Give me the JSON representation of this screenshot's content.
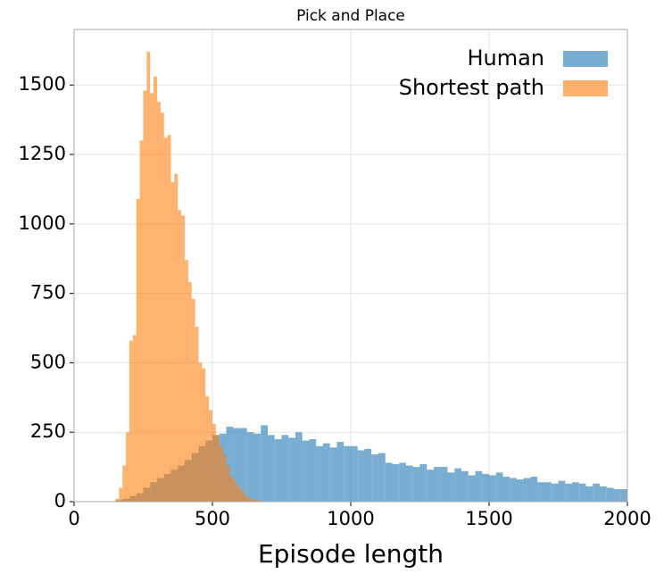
{
  "chart_data": {
    "type": "histogram",
    "title": "Pick and Place",
    "xlabel": "Episode length",
    "xlim": [
      0,
      2000
    ],
    "xticks": [
      0,
      500,
      1000,
      1500,
      2000
    ],
    "ylim": [
      0,
      1700
    ],
    "yticks": [
      0,
      250,
      500,
      750,
      1000,
      1250,
      1500
    ],
    "grid": true,
    "legend": "upper right",
    "series": [
      {
        "name": "Human",
        "color": "#1f77b4",
        "bins": [
          150,
          175,
          200,
          225,
          250,
          275,
          300,
          325,
          350,
          375,
          400,
          425,
          450,
          475,
          500,
          525,
          550,
          575,
          600,
          625,
          650,
          675,
          700,
          725,
          750,
          775,
          800,
          825,
          850,
          875,
          900,
          925,
          950,
          975,
          1000,
          1025,
          1050,
          1075,
          1100,
          1125,
          1150,
          1175,
          1200,
          1225,
          1250,
          1275,
          1300,
          1325,
          1350,
          1375,
          1400,
          1425,
          1450,
          1475,
          1500,
          1525,
          1550,
          1575,
          1600,
          1625,
          1650,
          1675,
          1700,
          1725,
          1750,
          1775,
          1800,
          1825,
          1850,
          1875,
          1900,
          1925,
          1950,
          1975,
          2000
        ],
        "values": [
          5,
          10,
          20,
          30,
          50,
          70,
          85,
          100,
          115,
          130,
          150,
          175,
          200,
          220,
          240,
          245,
          270,
          265,
          265,
          250,
          245,
          275,
          240,
          225,
          240,
          230,
          250,
          220,
          225,
          200,
          210,
          195,
          215,
          200,
          200,
          185,
          190,
          170,
          175,
          140,
          135,
          140,
          130,
          125,
          135,
          115,
          125,
          125,
          105,
          120,
          110,
          95,
          110,
          100,
          95,
          105,
          90,
          85,
          80,
          85,
          90,
          70,
          70,
          65,
          75,
          65,
          70,
          65,
          55,
          65,
          55,
          50,
          45,
          45
        ]
      },
      {
        "name": "Shortest path",
        "color": "#ff7f0e",
        "bins": [
          150,
          162.5,
          175,
          187.5,
          200,
          212.5,
          225,
          237.5,
          250,
          262.5,
          275,
          287.5,
          300,
          312.5,
          325,
          337.5,
          350,
          362.5,
          375,
          387.5,
          400,
          412.5,
          425,
          437.5,
          450,
          462.5,
          475,
          487.5,
          500,
          512.5,
          525,
          537.5,
          550,
          562.5,
          575,
          587.5,
          600,
          612.5,
          625,
          637.5,
          650,
          662.5,
          675,
          687.5,
          700
        ],
        "values": [
          10,
          50,
          130,
          250,
          580,
          600,
          1090,
          1300,
          1480,
          1620,
          1470,
          1530,
          1440,
          1400,
          1310,
          1320,
          1150,
          1180,
          1050,
          1030,
          870,
          790,
          730,
          630,
          500,
          480,
          380,
          330,
          280,
          240,
          200,
          170,
          130,
          90,
          75,
          55,
          40,
          25,
          15,
          10,
          5,
          3,
          2,
          1
        ]
      }
    ]
  }
}
